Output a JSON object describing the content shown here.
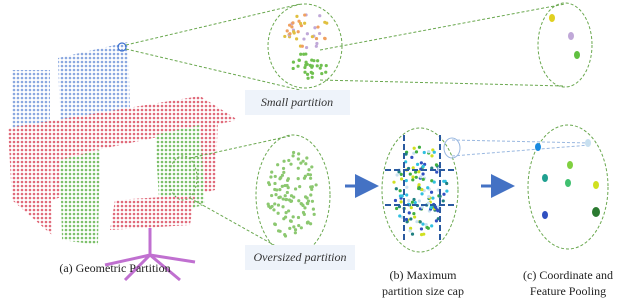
{
  "labels": {
    "small": "Small partition",
    "oversized": "Oversized partition"
  },
  "captions": {
    "a": "(a) Geometric Partition",
    "b": [
      "(b) Maximum",
      "partition size cap"
    ],
    "c": [
      "(c) Coordinate and",
      "Feature Pooling"
    ]
  }
}
